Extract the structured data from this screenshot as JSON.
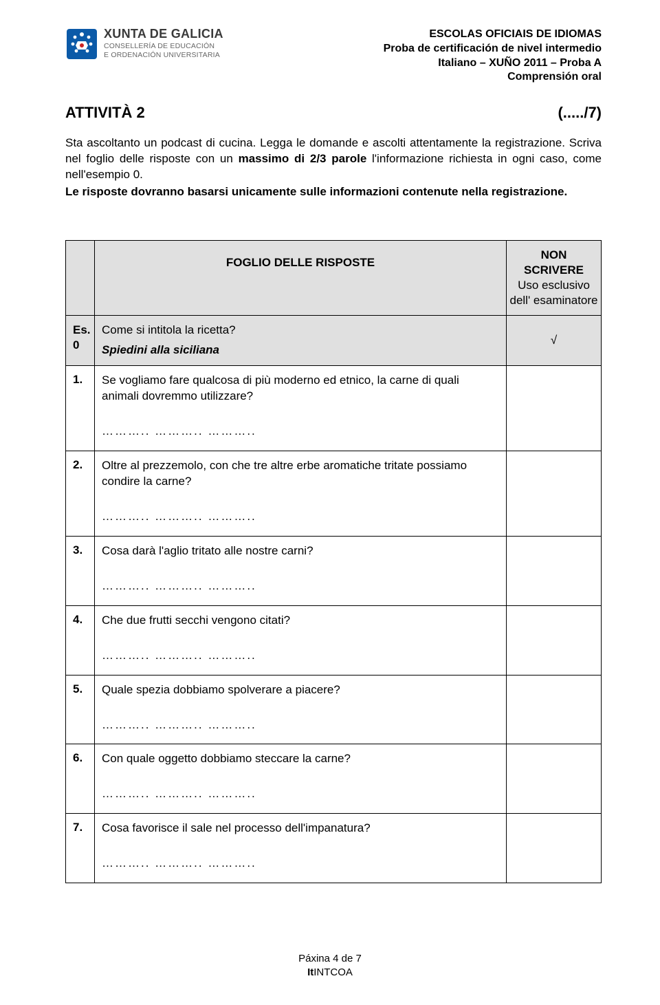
{
  "header": {
    "org_title": "XUNTA DE GALICIA",
    "org_sub1": "CONSELLERÍA DE EDUCACIÓN",
    "org_sub2": "E ORDENACIÓN UNIVERSITARIA",
    "line1": "ESCOLAS OFICIAIS DE IDIOMAS",
    "line2": "Proba de certificación de nivel intermedio",
    "line3": "Italiano – XUÑO 2011 – Proba A",
    "line4": "Comprensión oral"
  },
  "activity": {
    "title": "ATTIVITÀ  2",
    "score": "(...../7)"
  },
  "instructions": {
    "p1a": "Sta ascoltanto un podcast di cucina. Legga  le domande e ascolti attentamente la registrazione. Scriva nel foglio delle risposte con un ",
    "p1b_bold": "massimo di 2/3 parole",
    "p1c": " l'informazione richiesta in ogni caso, come nell'esempio 0.",
    "p2_bold": "Le risposte dovranno basarsi unicamente sulle informazioni contenute nella registrazione."
  },
  "table": {
    "header_title": "FOGLIO DELLE RISPOSTE",
    "header_note_l1": "NON SCRIVERE",
    "header_note_l2": "Uso esclusivo",
    "header_note_l3": "dell' esaminatore",
    "example": {
      "label_l1": "Es.",
      "label_l2": "0",
      "question": "Come si intitola la ricetta?",
      "answer": "Spiedini alla siciliana",
      "mark": "√"
    },
    "blank_text": "………..   ………..   ………..",
    "questions": [
      {
        "num": "1.",
        "text": "Se vogliamo fare qualcosa di più moderno ed etnico, la carne di quali animali dovremmo utilizzare?"
      },
      {
        "num": "2.",
        "text": "Oltre al prezzemolo, con che tre altre erbe aromatiche tritate possiamo condire la carne?"
      },
      {
        "num": "3.",
        "text": "Cosa darà l'aglio tritato alle nostre carni?"
      },
      {
        "num": "4.",
        "text": "Che due frutti secchi vengono citati?"
      },
      {
        "num": "5.",
        "text": "Quale spezia dobbiamo spolverare a piacere?"
      },
      {
        "num": "6.",
        "text": "Con quale oggetto dobbiamo steccare la carne?"
      },
      {
        "num": "7.",
        "text": "Cosa favorisce il sale nel processo dell'impanatura?"
      }
    ]
  },
  "footer": {
    "page": "Páxina 4 de 7",
    "code_bold": "It",
    "code_rest": "INTCOA"
  },
  "colors": {
    "logo_blue": "#0b5aa8",
    "text_black": "#000000",
    "header_gray": "#e0e0e0"
  }
}
